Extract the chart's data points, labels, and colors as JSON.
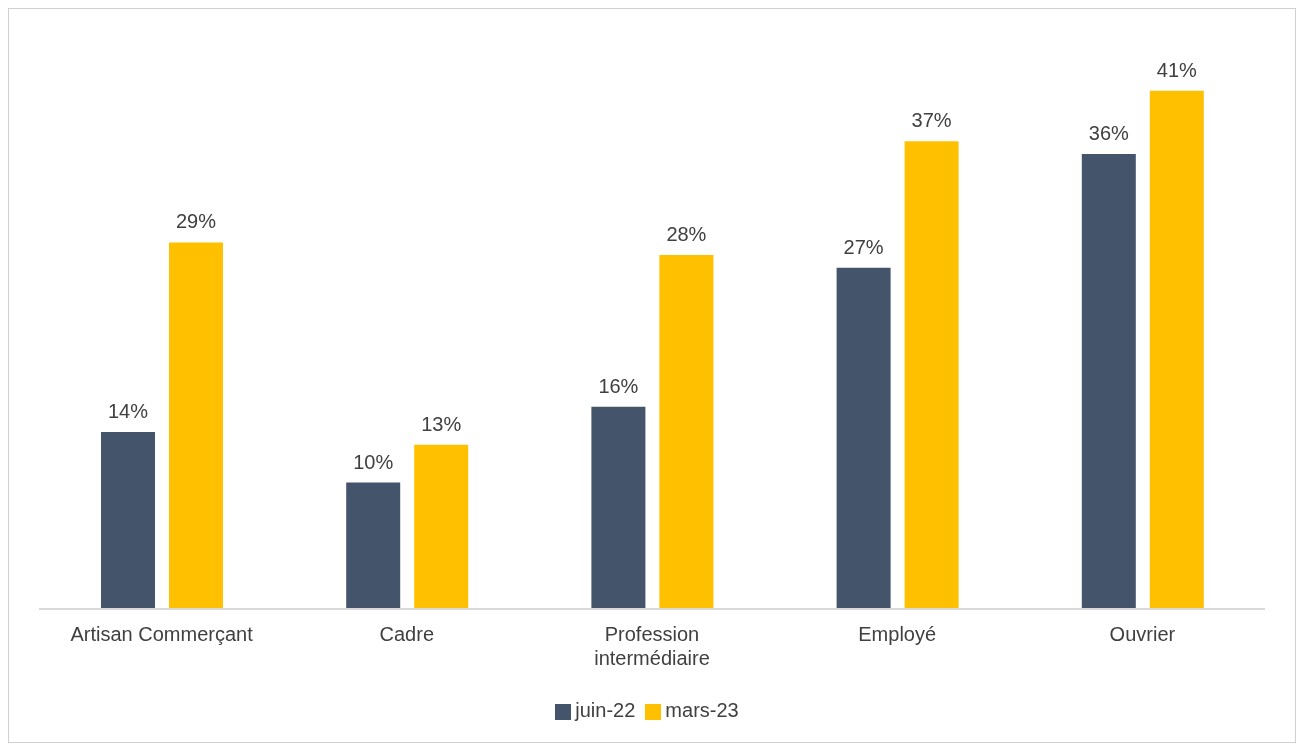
{
  "chart_data": {
    "type": "bar",
    "categories": [
      "Artisan Commerçant",
      "Cadre",
      "Profession intermédiaire",
      "Employé",
      "Ouvrier"
    ],
    "series": [
      {
        "name": "juin-22",
        "color": "#44546a",
        "values": [
          14,
          10,
          16,
          27,
          36
        ],
        "value_labels": [
          "14%",
          "10%",
          "16%",
          "27%",
          "36%"
        ]
      },
      {
        "name": "mars-23",
        "color": "#ffc000",
        "values": [
          29,
          13,
          28,
          37,
          41
        ],
        "value_labels": [
          "29%",
          "13%",
          "28%",
          "37%",
          "41%"
        ]
      }
    ],
    "legend": "bottom",
    "grid": false
  }
}
